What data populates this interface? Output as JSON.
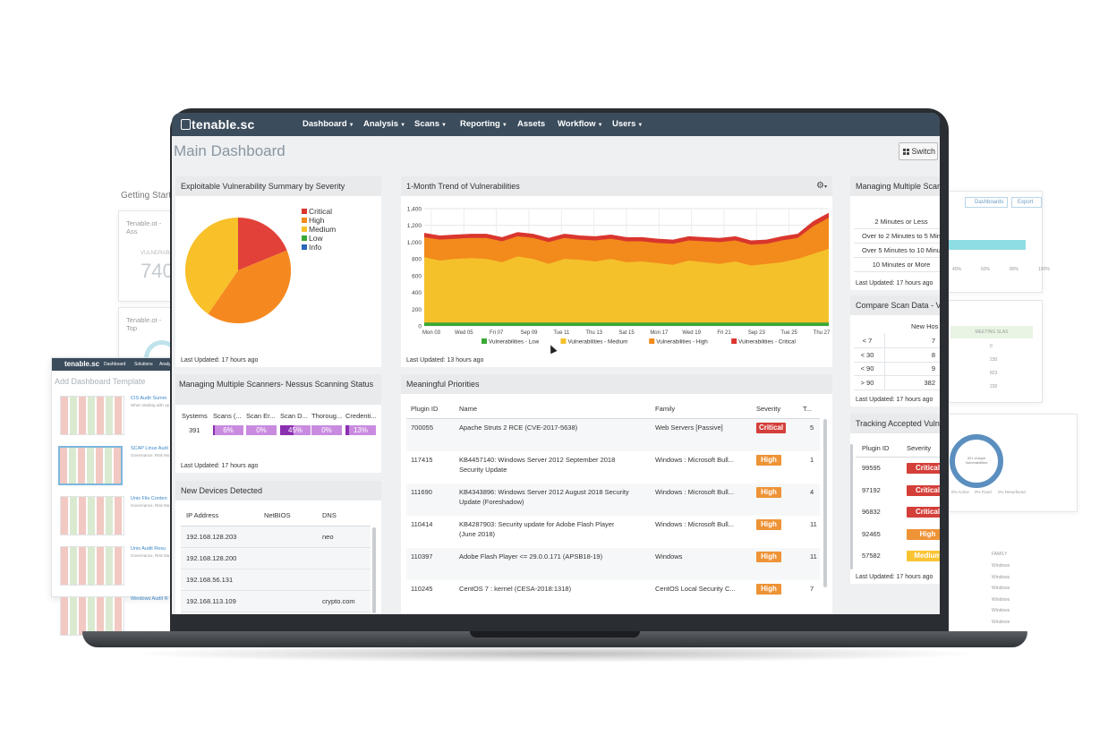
{
  "background": {
    "getting_started": "Getting Start",
    "tenable_ot_1": "Tenable.ot - Ass",
    "vuln_label": "VULNERABI",
    "big_number": "740",
    "tenable_ot_2": "Tenable.ot - Top",
    "mini_logo": "tenable.sc",
    "mini_nav_dashboard": "Dashboard",
    "mini_nav_solutions": "Solutions",
    "mini_nav_analysis": "Analy",
    "add_template": "Add Dashboard Template",
    "templates": [
      {
        "title": "CIS Audit Summ",
        "desc": "When dealing with op"
      },
      {
        "title": "SCAP Linux Audi",
        "desc": "Governance, Risk Mo"
      },
      {
        "title": "Unix File Conten",
        "desc": "Governance, Risk Ma"
      },
      {
        "title": "Unix Audit Resu",
        "desc": "Governance, Risk Ma"
      },
      {
        "title": "Windows Audit R",
        "desc": ""
      }
    ],
    "right_dashboards_btn": "Dashboards",
    "right_export_btn": "Export",
    "right_axis": [
      "40%",
      "60%",
      "80%",
      "100%"
    ],
    "right_meeting_slas": "MEETING SLAS",
    "right_sla_values": [
      "0",
      "230",
      "823",
      "230"
    ],
    "donut_center": "321 Unique Vulnerabilities",
    "donut_legend": [
      "0% Active",
      "0% Fixed",
      "0% Resurfaced"
    ],
    "family_header": "FAMILY",
    "family_rows": [
      "Windows",
      "Windows",
      "Windows",
      "Windows",
      "Windows",
      "Windows"
    ]
  },
  "nav": {
    "logo": "tenable.sc",
    "items": [
      "Dashboard",
      "Analysis",
      "Scans",
      "Reporting",
      "Assets",
      "Workflow",
      "Users"
    ],
    "carets": [
      true,
      true,
      true,
      true,
      false,
      true,
      true
    ]
  },
  "page": {
    "title": "Main Dashboard",
    "switch_label": "Switch"
  },
  "severity_summary": {
    "title": "Exploitable Vulnerability Summary by Severity",
    "legend": [
      {
        "label": "Critical",
        "color": "#d9362e"
      },
      {
        "label": "High",
        "color": "#f28a1c"
      },
      {
        "label": "Medium",
        "color": "#f5c12b"
      },
      {
        "label": "Low",
        "color": "#3aa835"
      },
      {
        "label": "Info",
        "color": "#2a68b8"
      }
    ],
    "updated": "Last Updated: 17 hours ago"
  },
  "trend": {
    "title": "1-Month Trend of Vulnerabilities",
    "updated": "Last Updated: 13 hours ago"
  },
  "chart_data": {
    "type": "area",
    "title": "1-Month Trend of Vulnerabilities",
    "x_ticks": [
      "Mon 03",
      "Wed 05",
      "Fri 07",
      "Sep 09",
      "Tue 11",
      "Thu 13",
      "Sat 15",
      "Mon 17",
      "Wed 19",
      "Fri 21",
      "Sep 23",
      "Tue 25",
      "Thu 27"
    ],
    "y_ticks": [
      "0",
      "200",
      "400",
      "600",
      "800",
      "1,000",
      "1,200",
      "1,400"
    ],
    "ylim": [
      0,
      1400
    ],
    "stacked": true,
    "series": [
      {
        "name": "Vulnerabilities - Low",
        "color": "#3aa835",
        "values": [
          40,
          40,
          40,
          40,
          40,
          40,
          40,
          40,
          40,
          40,
          40,
          40,
          40,
          40,
          40,
          40,
          40,
          40,
          40,
          40,
          40,
          40,
          40,
          40,
          40,
          40,
          40
        ]
      },
      {
        "name": "Vulnerabilities - Medium",
        "color": "#f5c12b",
        "values": [
          780,
          740,
          760,
          770,
          760,
          720,
          790,
          760,
          700,
          760,
          750,
          730,
          760,
          720,
          730,
          710,
          690,
          740,
          720,
          700,
          730,
          680,
          700,
          720,
          760,
          820,
          880
        ]
      },
      {
        "name": "Vulnerabilities - High",
        "color": "#f28a1c",
        "values": [
          240,
          250,
          240,
          240,
          250,
          250,
          240,
          250,
          260,
          250,
          240,
          250,
          240,
          250,
          240,
          240,
          250,
          240,
          250,
          260,
          250,
          250,
          240,
          260,
          250,
          330,
          370
        ]
      },
      {
        "name": "Vulnerabilities - Critical",
        "color": "#d9362e",
        "values": [
          50,
          50,
          50,
          50,
          50,
          50,
          50,
          50,
          50,
          50,
          50,
          50,
          50,
          50,
          50,
          50,
          50,
          50,
          50,
          50,
          50,
          50,
          50,
          50,
          50,
          60,
          60
        ]
      }
    ]
  },
  "scanners_left": {
    "title": "Managing Multiple Scanners- Nessus Scanning Status",
    "headers": [
      "Systems",
      "Scans (...",
      "Scan Er...",
      "Scan D...",
      "Thoroug...",
      "Credenti..."
    ],
    "systems": "391",
    "bars": [
      {
        "label": "6%",
        "pct": 0.06
      },
      {
        "label": "0%",
        "pct": 0
      },
      {
        "label": "45%",
        "pct": 0.45
      },
      {
        "label": "0%",
        "pct": 0
      },
      {
        "label": "13%",
        "pct": 0.13
      }
    ],
    "updated": "Last Updated: 17 hours ago"
  },
  "new_devices": {
    "title": "New Devices Detected",
    "headers": [
      "IP Address",
      "NetBIOS",
      "DNS"
    ],
    "rows": [
      [
        "192.168.128.203",
        "",
        "neo"
      ],
      [
        "192.168.128.200",
        "",
        ""
      ],
      [
        "192.168.56.131",
        "",
        ""
      ],
      [
        "192.168.113.109",
        "",
        "crypto.com"
      ]
    ]
  },
  "priorities": {
    "title": "Meaningful Priorities",
    "headers": [
      "Plugin ID",
      "Name",
      "Family",
      "Severity",
      "T..."
    ],
    "rows": [
      {
        "id": "700055",
        "name": "Apache Struts 2 RCE (CVE-2017-5638)",
        "name2": "",
        "family": "Web Servers [Passive]",
        "severity": "Critical",
        "t": "5"
      },
      {
        "id": "117415",
        "name": "KB4457140: Windows Server 2012 September 2018",
        "name2": "Security Update",
        "family": "Windows : Microsoft Bull...",
        "severity": "High",
        "t": "1"
      },
      {
        "id": "111690",
        "name": "KB4343896: Windows Server 2012 August 2018 Security",
        "name2": "Update (Foreshadow)",
        "family": "Windows : Microsoft Bull...",
        "severity": "High",
        "t": "4"
      },
      {
        "id": "110414",
        "name": "KB4287903: Security update for Adobe Flash Player",
        "name2": "(June 2018)",
        "family": "Windows : Microsoft Bull...",
        "severity": "High",
        "t": "11"
      },
      {
        "id": "110397",
        "name": "Adobe Flash Player <= 29.0.0.171 (APSB18-19)",
        "name2": "",
        "family": "Windows",
        "severity": "High",
        "t": "11"
      },
      {
        "id": "110245",
        "name": "CentOS 7 : kernel (CESA-2018:1318)",
        "name2": "",
        "family": "CentOS Local Security C...",
        "severity": "High",
        "t": "7"
      }
    ]
  },
  "scanners_right": {
    "title": "Managing Multiple Scann",
    "rows": [
      "2 Minutes or Less",
      "Over to 2 Minutes to 5 Min",
      "Over 5 Minutes to 10 Minu",
      "10 Minutes or More"
    ],
    "updated": "Last Updated: 17 hours ago"
  },
  "compare_scan": {
    "title": "Compare Scan Data - Vu",
    "header": "New Hos",
    "rows": [
      [
        "< 7",
        "7"
      ],
      [
        "< 30",
        "8"
      ],
      [
        "< 90",
        "9"
      ],
      [
        "> 90",
        "382"
      ]
    ],
    "updated": "Last Updated: 17 hours ago"
  },
  "tracking": {
    "title": "Tracking Accepted Vulne",
    "headers": [
      "Plugin ID",
      "Severity"
    ],
    "rows": [
      {
        "id": "99595",
        "severity": "Critical"
      },
      {
        "id": "97192",
        "severity": "Critical"
      },
      {
        "id": "96832",
        "severity": "Critical"
      },
      {
        "id": "92465",
        "severity": "High"
      },
      {
        "id": "57582",
        "severity": "Medium"
      }
    ],
    "updated": "Last Updated: 17 hours ago"
  }
}
